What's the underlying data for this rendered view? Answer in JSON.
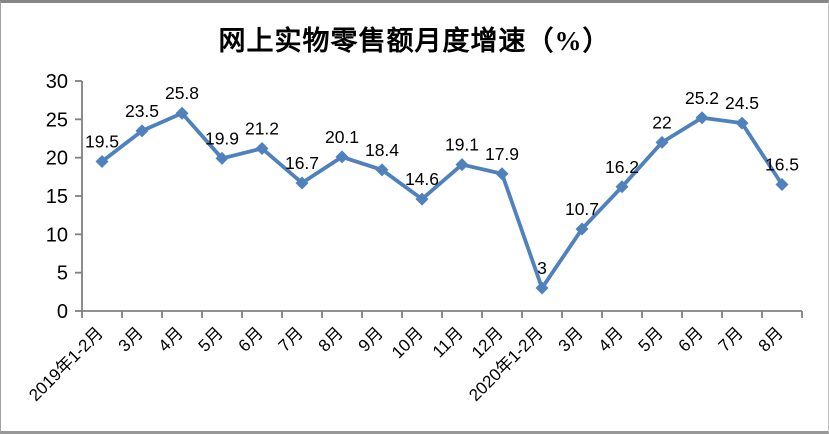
{
  "frame": {
    "border_top_color": "#868686",
    "border_bottom_color": "#989898",
    "background": "#ffffff"
  },
  "chart_data": {
    "type": "line",
    "title": "网上实物零售额月度增速（%）",
    "categories": [
      "2019年1-2月",
      "3月",
      "4月",
      "5月",
      "6月",
      "7月",
      "8月",
      "9月",
      "10月",
      "11月",
      "12月",
      "2020年1-2月",
      "3月",
      "4月",
      "5月",
      "6月",
      "7月",
      "8月"
    ],
    "values": [
      19.5,
      23.5,
      25.8,
      19.9,
      21.2,
      16.7,
      20.1,
      18.4,
      14.6,
      19.1,
      17.9,
      3,
      10.7,
      16.2,
      22,
      25.2,
      24.5,
      16.5
    ],
    "xlabel": "",
    "ylabel": "",
    "ylim": [
      0,
      30
    ],
    "yticks": [
      0,
      5,
      10,
      15,
      20,
      25,
      30
    ],
    "grid": false,
    "legend": "none",
    "marker": "diamond",
    "line_color": "#4F81BD",
    "marker_color": "#4F81BD",
    "axis_color": "#808080",
    "tick_label_color": "#000000",
    "data_label_color": "#000000"
  }
}
